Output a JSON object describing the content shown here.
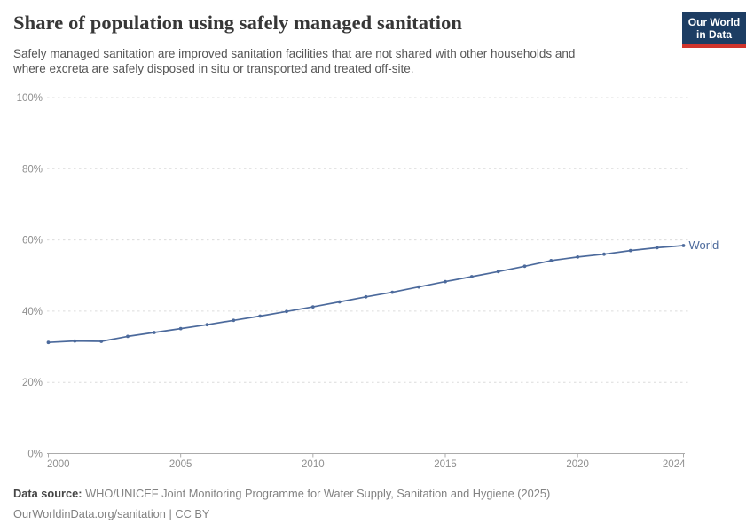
{
  "header": {
    "title": "Share of population using safely managed sanitation",
    "subtitle_lines": [
      "Safely managed sanitation are improved sanitation facilities that are not shared with other households and",
      "where excreta are safely disposed in situ or transported and treated off-site."
    ],
    "logo": {
      "line1": "Our World",
      "line2": "in Data",
      "bg_color": "#1d3d63",
      "accent_color": "#d0342c"
    }
  },
  "chart_data": {
    "type": "line",
    "title": "Share of population using safely managed sanitation",
    "x": [
      2000,
      2001,
      2002,
      2003,
      2004,
      2005,
      2006,
      2007,
      2008,
      2009,
      2010,
      2011,
      2012,
      2013,
      2014,
      2015,
      2016,
      2017,
      2018,
      2019,
      2020,
      2021,
      2022,
      2023,
      2024
    ],
    "series": [
      {
        "name": "World",
        "color": "#4c6a9c",
        "values": [
          31.2,
          31.6,
          31.5,
          32.9,
          34.0,
          35.1,
          36.2,
          37.4,
          38.6,
          39.9,
          41.2,
          42.6,
          44.0,
          45.3,
          46.8,
          48.3,
          49.7,
          51.1,
          52.6,
          54.2,
          55.2,
          56.0,
          57.0,
          57.8,
          58.4
        ]
      }
    ],
    "xlabel": "",
    "ylabel": "",
    "ylim": [
      0,
      100
    ],
    "yticks": [
      0,
      20,
      40,
      60,
      80,
      100
    ],
    "ytick_labels": [
      "0%",
      "20%",
      "40%",
      "60%",
      "80%",
      "100%"
    ],
    "xticks": [
      2000,
      2005,
      2010,
      2015,
      2020,
      2024
    ],
    "grid": "horizontal-dashed",
    "legend": "line-end-label",
    "colors": {
      "grid": "#dcdcdc",
      "axis": "#ababab",
      "tick_label": "#8f8f8f"
    }
  },
  "footer": {
    "source_label": "Data source:",
    "source_text": " WHO/UNICEF Joint Monitoring Programme for Water Supply, Sanitation and Hygiene (2025)",
    "license_line": "OurWorldinData.org/sanitation | CC BY"
  }
}
